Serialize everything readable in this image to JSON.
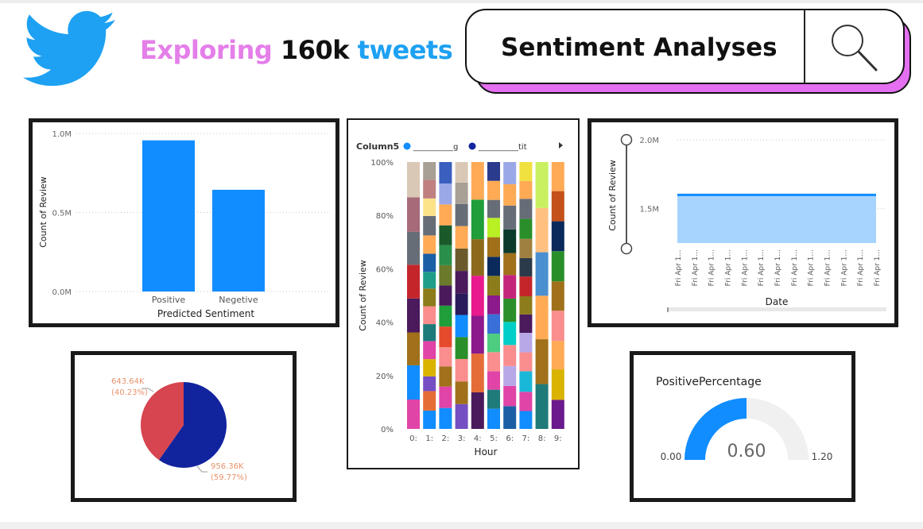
{
  "header": {
    "title_part1": "Exploring",
    "title_part2": "160k",
    "title_part3": "tweets",
    "search_text": "Sentiment Analyses"
  },
  "icons": {
    "logo": "twitter-bird-icon",
    "search": "magnifier-icon",
    "legend_more": "caret-right-icon"
  },
  "colors": {
    "twitter_blue": "#1ea1f2",
    "pink_accent": "#e47fe9",
    "bar_blue": "#118dff",
    "pie_red": "#d64550",
    "pie_navy": "#12239e",
    "gauge_blue": "#118dff",
    "gauge_track": "#f0f0f0",
    "area_fill": "#a6d4ff"
  },
  "chart_data": [
    {
      "type": "bar",
      "categories": [
        "Positive",
        "Negetive"
      ],
      "values": [
        956360,
        643640
      ],
      "xlabel": "Predicted Sentiment",
      "ylabel": "Count of Review",
      "ylim": [
        0,
        1000000
      ],
      "yticks": [
        {
          "value": 0,
          "label": "0.0M"
        },
        {
          "value": 500000,
          "label": "0.5M"
        },
        {
          "value": 1000000,
          "label": "1.0M"
        }
      ],
      "grid": true
    },
    {
      "type": "bar",
      "stacked": "100%",
      "categories": [
        "0:",
        "1:",
        "2:",
        "3:",
        "4:",
        "5:",
        "6:",
        "7:",
        "8:",
        "9:"
      ],
      "xlabel": "Hour",
      "ylabel": "Count of Review",
      "legend_title": "Column5",
      "legend": [
        {
          "name": "__________g",
          "color": "#118dff"
        },
        {
          "name": "__________tit",
          "color": "#12239e"
        }
      ],
      "yticks": [
        "0%",
        "20%",
        "40%",
        "60%",
        "80%",
        "100%"
      ],
      "bars": [
        [
          {
            "p": 10.9,
            "c": "#e044a7"
          },
          {
            "p": 12.7,
            "c": "#118dff"
          },
          {
            "p": 12.2,
            "c": "#a0701b"
          },
          {
            "p": 12.6,
            "c": "#4a1a5c"
          },
          {
            "p": 12.5,
            "c": "#c4252b"
          },
          {
            "p": 12.2,
            "c": "#666d77"
          },
          {
            "p": 12.8,
            "c": "#a66a79"
          },
          {
            "p": 13.1,
            "c": "#d9c8b5"
          }
        ],
        [
          {
            "p": 6.6,
            "c": "#118dff"
          },
          {
            "p": 7.0,
            "c": "#e66c37"
          },
          {
            "p": 5.3,
            "c": "#744ec2"
          },
          {
            "p": 6.2,
            "c": "#d9b300"
          },
          {
            "p": 6.5,
            "c": "#e044a7"
          },
          {
            "p": 6.1,
            "c": "#1f7a7a"
          },
          {
            "p": 6.4,
            "c": "#fa8d8d"
          },
          {
            "p": 6.4,
            "c": "#8c7c1b"
          },
          {
            "p": 6.0,
            "c": "#1f9e89"
          },
          {
            "p": 6.5,
            "c": "#1a5fa6"
          },
          {
            "p": 6.6,
            "c": "#ffaa55"
          },
          {
            "p": 7.0,
            "c": "#666d77"
          },
          {
            "p": 6.3,
            "c": "#fce38a"
          },
          {
            "p": 6.7,
            "c": "#c08080"
          },
          {
            "p": 6.4,
            "c": "#a89f95"
          }
        ],
        [
          {
            "p": 7.6,
            "c": "#118dff"
          },
          {
            "p": 7.8,
            "c": "#e044a7"
          },
          {
            "p": 7.3,
            "c": "#a0701b"
          },
          {
            "p": 7.0,
            "c": "#fa8d8d"
          },
          {
            "p": 7.5,
            "c": "#e64a2c"
          },
          {
            "p": 7.6,
            "c": "#1f9e3a"
          },
          {
            "p": 7.3,
            "c": "#4a1a5c"
          },
          {
            "p": 7.4,
            "c": "#6b7a2b"
          },
          {
            "p": 7.3,
            "c": "#2a8f4a"
          },
          {
            "p": 7.2,
            "c": "#1a5a2a"
          },
          {
            "p": 7.6,
            "c": "#ffaa55"
          },
          {
            "p": 7.6,
            "c": "#9aa8e8"
          },
          {
            "p": 7.8,
            "c": "#3a5fbf"
          }
        ],
        [
          {
            "p": 9.3,
            "c": "#744ec2"
          },
          {
            "p": 8.5,
            "c": "#a0701b"
          },
          {
            "p": 8.4,
            "c": "#fa8d8d"
          },
          {
            "p": 8.2,
            "c": "#2a8f2a"
          },
          {
            "p": 8.3,
            "c": "#118dff"
          },
          {
            "p": 8.0,
            "c": "#2a1a5c"
          },
          {
            "p": 8.5,
            "c": "#4a1a5c"
          },
          {
            "p": 8.4,
            "c": "#6b5a2b"
          },
          {
            "p": 8.4,
            "c": "#ffaa55"
          },
          {
            "p": 8.3,
            "c": "#666d77"
          },
          {
            "p": 8.0,
            "c": "#a89f95"
          },
          {
            "p": 7.7,
            "c": "#d9c8b5"
          }
        ],
        [
          {
            "p": 13.7,
            "c": "#4a1a5c"
          },
          {
            "p": 14.5,
            "c": "#e66c37"
          },
          {
            "p": 14.2,
            "c": "#8c1a8c"
          },
          {
            "p": 15.0,
            "c": "#e81a8c"
          },
          {
            "p": 13.7,
            "c": "#8c6a1b"
          },
          {
            "p": 14.8,
            "c": "#1f9e3a"
          },
          {
            "p": 14.1,
            "c": "#ffaa55"
          }
        ],
        [
          {
            "p": 7.4,
            "c": "#118dff"
          },
          {
            "p": 7.0,
            "c": "#1f7a7a"
          },
          {
            "p": 6.8,
            "c": "#e044a7"
          },
          {
            "p": 7.0,
            "c": "#fa8d8d"
          },
          {
            "p": 6.8,
            "c": "#4ecd80"
          },
          {
            "p": 7.1,
            "c": "#3a6fd8"
          },
          {
            "p": 6.9,
            "c": "#8c1a8c"
          },
          {
            "p": 7.2,
            "c": "#8c7c1b"
          },
          {
            "p": 7.0,
            "c": "#0a2a5c"
          },
          {
            "p": 7.2,
            "c": "#a0701b"
          },
          {
            "p": 7.1,
            "c": "#b8f024"
          },
          {
            "p": 6.6,
            "c": "#666d77"
          },
          {
            "p": 7.0,
            "c": "#ffaa55"
          },
          {
            "p": 6.9,
            "c": "#2a3a8c"
          }
        ],
        [
          {
            "p": 8.0,
            "c": "#1a5fa6"
          },
          {
            "p": 7.1,
            "c": "#e044a7"
          },
          {
            "p": 7.0,
            "c": "#b8a8e8"
          },
          {
            "p": 7.4,
            "c": "#fa8d8d"
          },
          {
            "p": 8.1,
            "c": "#00cfc8"
          },
          {
            "p": 8.2,
            "c": "#2a8f2a"
          },
          {
            "p": 8.3,
            "c": "#c4257a"
          },
          {
            "p": 7.7,
            "c": "#a0701b"
          },
          {
            "p": 8.3,
            "c": "#0a3a2a"
          },
          {
            "p": 8.4,
            "c": "#666d77"
          },
          {
            "p": 7.5,
            "c": "#ffaa55"
          },
          {
            "p": 7.8,
            "c": "#9aa8e8"
          }
        ],
        [
          {
            "p": 6.7,
            "c": "#118dff"
          },
          {
            "p": 7.2,
            "c": "#e044a7"
          },
          {
            "p": 7.7,
            "c": "#1ab8d8"
          },
          {
            "p": 7.1,
            "c": "#fa8d8d"
          },
          {
            "p": 7.3,
            "c": "#b8a8e8"
          },
          {
            "p": 6.9,
            "c": "#4a1a5c"
          },
          {
            "p": 6.8,
            "c": "#8c7c1b"
          },
          {
            "p": 7.4,
            "c": "#c4252b"
          },
          {
            "p": 6.9,
            "c": "#2a3a4a"
          },
          {
            "p": 7.2,
            "c": "#a08040"
          },
          {
            "p": 7.5,
            "c": "#2a8f2a"
          },
          {
            "p": 7.5,
            "c": "#666d77"
          },
          {
            "p": 6.7,
            "c": "#ffaa55"
          },
          {
            "p": 7.1,
            "c": "#f0e040"
          }
        ],
        [
          {
            "p": 16.8,
            "c": "#1f7a7a"
          },
          {
            "p": 16.8,
            "c": "#a0701b"
          },
          {
            "p": 16.3,
            "c": "#ffaa55"
          },
          {
            "p": 16.3,
            "c": "#4a90d0"
          },
          {
            "p": 16.6,
            "c": "#ffc080"
          },
          {
            "p": 17.2,
            "c": "#c8f060"
          }
        ],
        [
          {
            "p": 10.9,
            "c": "#6a1a8c"
          },
          {
            "p": 11.4,
            "c": "#d9b300"
          },
          {
            "p": 10.7,
            "c": "#ffaa55"
          },
          {
            "p": 11.3,
            "c": "#fa8d8d"
          },
          {
            "p": 11.0,
            "c": "#a0701b"
          },
          {
            "p": 11.3,
            "c": "#2a8f2a"
          },
          {
            "p": 11.2,
            "c": "#0a2a5c"
          },
          {
            "p": 11.3,
            "c": "#c4501a"
          },
          {
            "p": 10.9,
            "c": "#ffaa55"
          }
        ]
      ]
    },
    {
      "type": "area",
      "xlabel": "Date",
      "ylabel": "Count of Review",
      "ylim": [
        1250000,
        2000000
      ],
      "yticks": [
        {
          "value": 1500000,
          "label": "1.5M"
        },
        {
          "value": 2000000,
          "label": "2.0M"
        }
      ],
      "x": [
        "Fri Apr 1...",
        "Fri Apr 1...",
        "Fri Apr 1...",
        "Fri Apr 1...",
        "Fri Apr 1...",
        "Fri Apr 1...",
        "Fri Apr 1...",
        "Fri Apr 1...",
        "Fri Apr 1...",
        "Fri Apr 1...",
        "Fri Apr 1...",
        "Fri Apr 1...",
        "Fri Apr 1..."
      ],
      "values": [
        1600000,
        1600000,
        1600000,
        1600000,
        1600000,
        1600000,
        1600000,
        1600000,
        1600000,
        1600000,
        1600000,
        1600000,
        1600000
      ],
      "grid": true,
      "slider": true
    },
    {
      "type": "pie",
      "slices": [
        {
          "value": 956360,
          "label": "956.36K",
          "pct": "(59.77%)",
          "color": "#12239e"
        },
        {
          "value": 643640,
          "label": "643.64K",
          "pct": "(40.23%)",
          "color": "#d64550"
        }
      ]
    },
    {
      "type": "gauge",
      "title": "PositivePercentage",
      "value": 0.6,
      "value_label": "0.60",
      "min": 0,
      "max": 1.2,
      "min_label": "0.00",
      "max_label": "1.20"
    }
  ]
}
